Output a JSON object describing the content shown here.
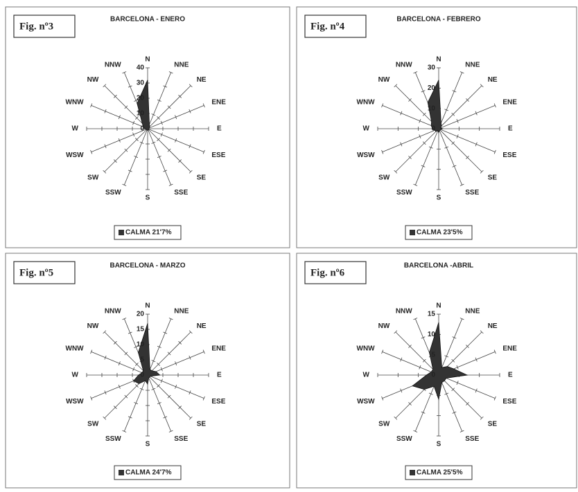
{
  "chart_data": [
    {
      "type": "radar",
      "figure": "Fig. nº3",
      "title": "BARCELONA - ENERO",
      "categories": [
        "N",
        "NNE",
        "NE",
        "ENE",
        "E",
        "ESE",
        "SE",
        "SSE",
        "S",
        "SSW",
        "SW",
        "WSW",
        "W",
        "WNW",
        "NW",
        "NNW"
      ],
      "values": [
        32,
        3,
        2,
        1,
        1,
        1,
        1,
        1,
        1,
        1,
        1,
        1,
        2,
        3,
        5,
        18
      ],
      "color": "#333333",
      "rlim": [
        0,
        40
      ],
      "rticks": [
        0,
        10,
        20,
        30,
        40
      ],
      "calm_label": "CALMA 21'7%"
    },
    {
      "type": "radar",
      "figure": "Fig. nº4",
      "title": "BARCELONA - FEBRERO",
      "categories": [
        "N",
        "NNE",
        "NE",
        "ENE",
        "E",
        "ESE",
        "SE",
        "SSE",
        "S",
        "SSW",
        "SW",
        "WSW",
        "W",
        "WNW",
        "NW",
        "NNW"
      ],
      "values": [
        24,
        3,
        2,
        1,
        2,
        1,
        1,
        1,
        2,
        1,
        2,
        2,
        3,
        4,
        5,
        14
      ],
      "color": "#333333",
      "rlim": [
        0,
        30
      ],
      "rticks": [
        0,
        10,
        20,
        30
      ],
      "calm_label": "CALMA 23'5%"
    },
    {
      "type": "radar",
      "figure": "Fig. nº5",
      "title": "BARCELONA - MARZO",
      "categories": [
        "N",
        "NNE",
        "NE",
        "ENE",
        "E",
        "ESE",
        "SE",
        "SSE",
        "S",
        "SSW",
        "SW",
        "WSW",
        "W",
        "WNW",
        "NW",
        "NNW"
      ],
      "values": [
        17,
        2,
        2,
        3,
        4,
        1,
        1,
        1,
        3,
        2,
        4,
        5,
        3,
        2,
        2,
        8
      ],
      "color": "#333333",
      "rlim": [
        0,
        20
      ],
      "rticks": [
        0,
        5,
        10,
        15,
        20
      ],
      "calm_label": "CALMA 24'7%"
    },
    {
      "type": "radar",
      "figure": "Fig. nº6",
      "title": "BARCELONA -ABRIL",
      "categories": [
        "N",
        "NNE",
        "NE",
        "ENE",
        "E",
        "ESE",
        "SE",
        "SSE",
        "S",
        "SSW",
        "SW",
        "WSW",
        "W",
        "WNW",
        "NW",
        "NNW"
      ],
      "values": [
        13,
        2,
        3,
        4,
        7,
        2,
        2,
        2,
        6,
        3,
        5,
        7,
        3,
        2,
        2,
        6
      ],
      "color": "#333333",
      "rlim": [
        0,
        15
      ],
      "rticks": [
        0,
        5,
        10,
        15
      ],
      "calm_label": "CALMA 25'5%"
    }
  ]
}
